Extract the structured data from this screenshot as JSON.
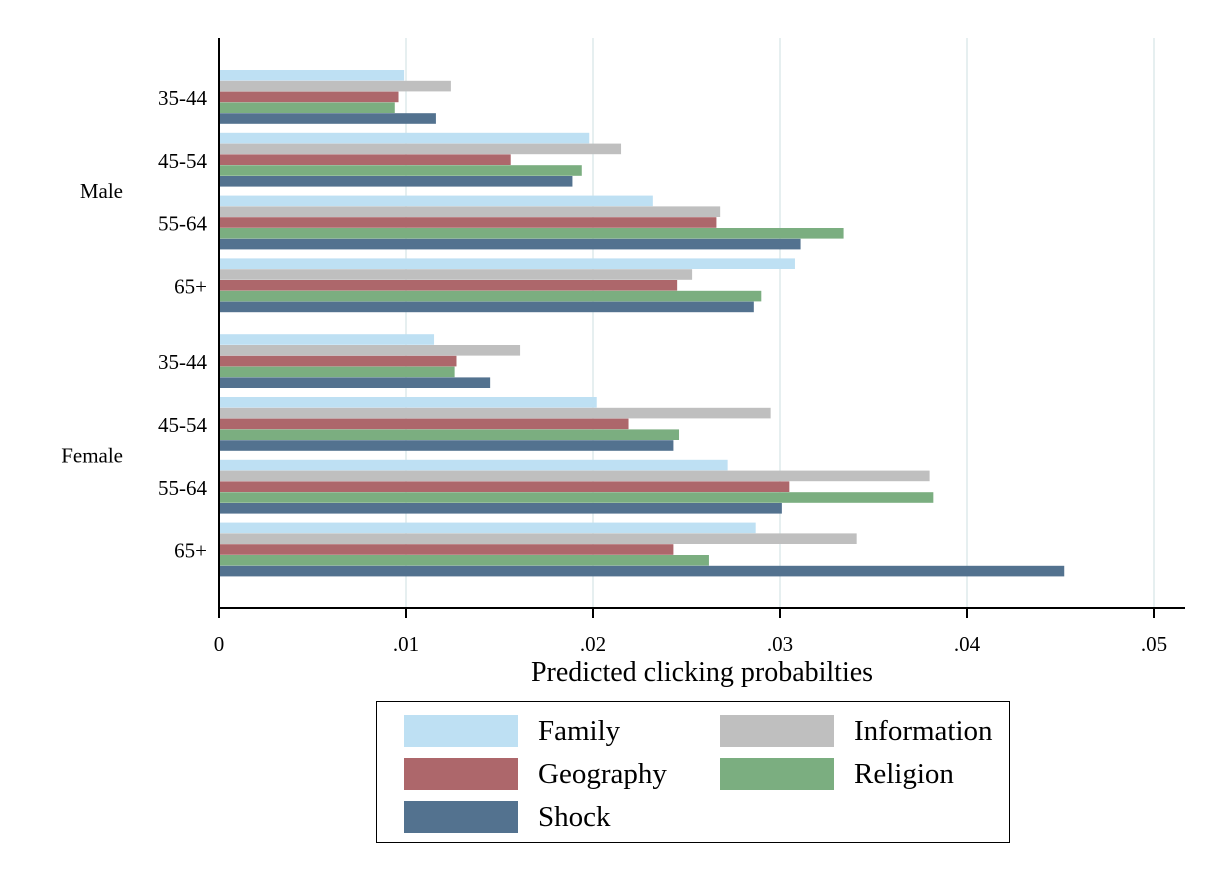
{
  "chart_data": {
    "type": "bar",
    "orientation": "horizontal",
    "xlabel": "Predicted clicking probabilties",
    "xlim": [
      0,
      0.0517
    ],
    "xticks": [
      0,
      0.01,
      0.02,
      0.03,
      0.04,
      0.05
    ],
    "xtick_labels": [
      "0",
      ".01",
      ".02",
      ".03",
      ".04",
      ".05"
    ],
    "grid": "vertical",
    "legend_position": "bottom",
    "groups": [
      {
        "name": "Male",
        "categories": [
          {
            "label": "35-44",
            "values": {
              "Family": 0.0099,
              "Information": 0.0124,
              "Geography": 0.0096,
              "Religion": 0.0094,
              "Shock": 0.0116
            }
          },
          {
            "label": "45-54",
            "values": {
              "Family": 0.0198,
              "Information": 0.0215,
              "Geography": 0.0156,
              "Religion": 0.0194,
              "Shock": 0.0189
            }
          },
          {
            "label": "55-64",
            "values": {
              "Family": 0.0232,
              "Information": 0.0268,
              "Geography": 0.0266,
              "Religion": 0.0334,
              "Shock": 0.0311
            }
          },
          {
            "label": "65+",
            "values": {
              "Family": 0.0308,
              "Information": 0.0253,
              "Geography": 0.0245,
              "Religion": 0.029,
              "Shock": 0.0286
            }
          }
        ]
      },
      {
        "name": "Female",
        "categories": [
          {
            "label": "35-44",
            "values": {
              "Family": 0.0115,
              "Information": 0.0161,
              "Geography": 0.0127,
              "Religion": 0.0126,
              "Shock": 0.0145
            }
          },
          {
            "label": "45-54",
            "values": {
              "Family": 0.0202,
              "Information": 0.0295,
              "Geography": 0.0219,
              "Religion": 0.0246,
              "Shock": 0.0243
            }
          },
          {
            "label": "55-64",
            "values": {
              "Family": 0.0272,
              "Information": 0.038,
              "Geography": 0.0305,
              "Religion": 0.0382,
              "Shock": 0.0301
            }
          },
          {
            "label": "65+",
            "values": {
              "Family": 0.0287,
              "Information": 0.0341,
              "Geography": 0.0243,
              "Religion": 0.0262,
              "Shock": 0.0452
            }
          }
        ]
      }
    ],
    "series": [
      {
        "name": "Family",
        "color": "#bee0f3"
      },
      {
        "name": "Information",
        "color": "#bfbfbf"
      },
      {
        "name": "Geography",
        "color": "#ad676b"
      },
      {
        "name": "Religion",
        "color": "#7bae80"
      },
      {
        "name": "Shock",
        "color": "#53728f"
      }
    ],
    "legend": [
      {
        "name": "Family",
        "color": "#bee0f3"
      },
      {
        "name": "Information",
        "color": "#bfbfbf"
      },
      {
        "name": "Geography",
        "color": "#ad676b"
      },
      {
        "name": "Religion",
        "color": "#7bae80"
      },
      {
        "name": "Shock",
        "color": "#53728f"
      }
    ],
    "grid_color": "#e6eff0"
  }
}
